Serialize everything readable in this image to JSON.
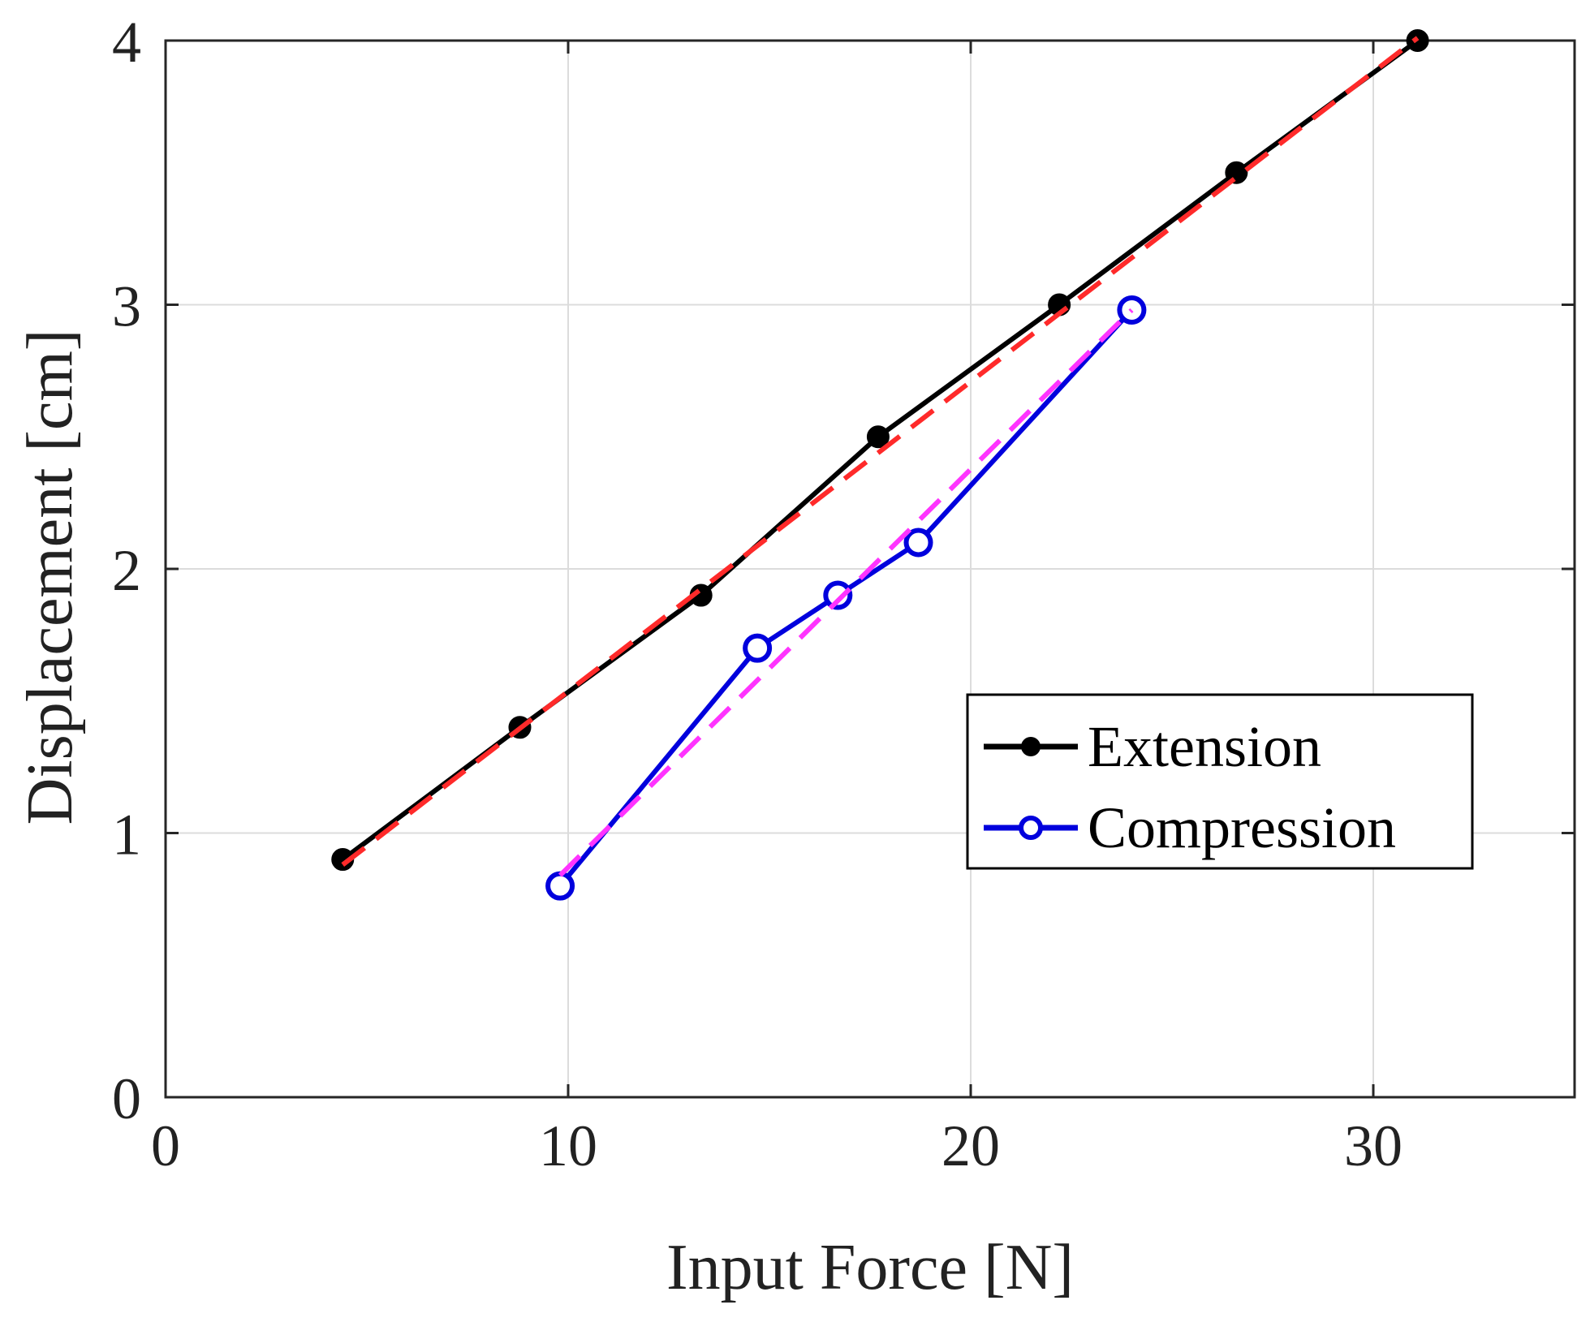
{
  "chart_data": {
    "type": "line",
    "title": "",
    "xlabel": "Input Force [N]",
    "ylabel": "Displacement [cm]",
    "xlim": [
      0,
      35
    ],
    "ylim": [
      0,
      4
    ],
    "xticks": [
      0,
      10,
      20,
      30
    ],
    "yticks": [
      0,
      1,
      2,
      3,
      4
    ],
    "xtick_labels": [
      "0",
      "10",
      "20",
      "30"
    ],
    "ytick_labels": [
      "0",
      "1",
      "2",
      "3",
      "4"
    ],
    "grid": true,
    "legend_position": "right-center",
    "series": [
      {
        "name": "Extension",
        "color": "#000000",
        "marker": "filled-circle",
        "x": [
          4.4,
          8.8,
          13.3,
          17.7,
          22.2,
          26.6,
          31.1
        ],
        "y": [
          0.9,
          1.4,
          1.9,
          2.5,
          3.0,
          3.5,
          4.0
        ]
      },
      {
        "name": "Compression",
        "color": "#0000dd",
        "marker": "open-circle",
        "x": [
          9.8,
          14.7,
          16.7,
          18.7,
          24.0
        ],
        "y": [
          0.8,
          1.7,
          1.9,
          2.1,
          2.98
        ]
      }
    ],
    "fits": [
      {
        "of": "Extension",
        "color": "#ff2a2a",
        "style": "dashed",
        "x": [
          4.4,
          31.1
        ],
        "y": [
          0.88,
          4.01
        ]
      },
      {
        "of": "Compression",
        "color": "#ff33ff",
        "style": "dashed",
        "x": [
          9.8,
          24.0
        ],
        "y": [
          0.84,
          2.98
        ]
      }
    ]
  }
}
